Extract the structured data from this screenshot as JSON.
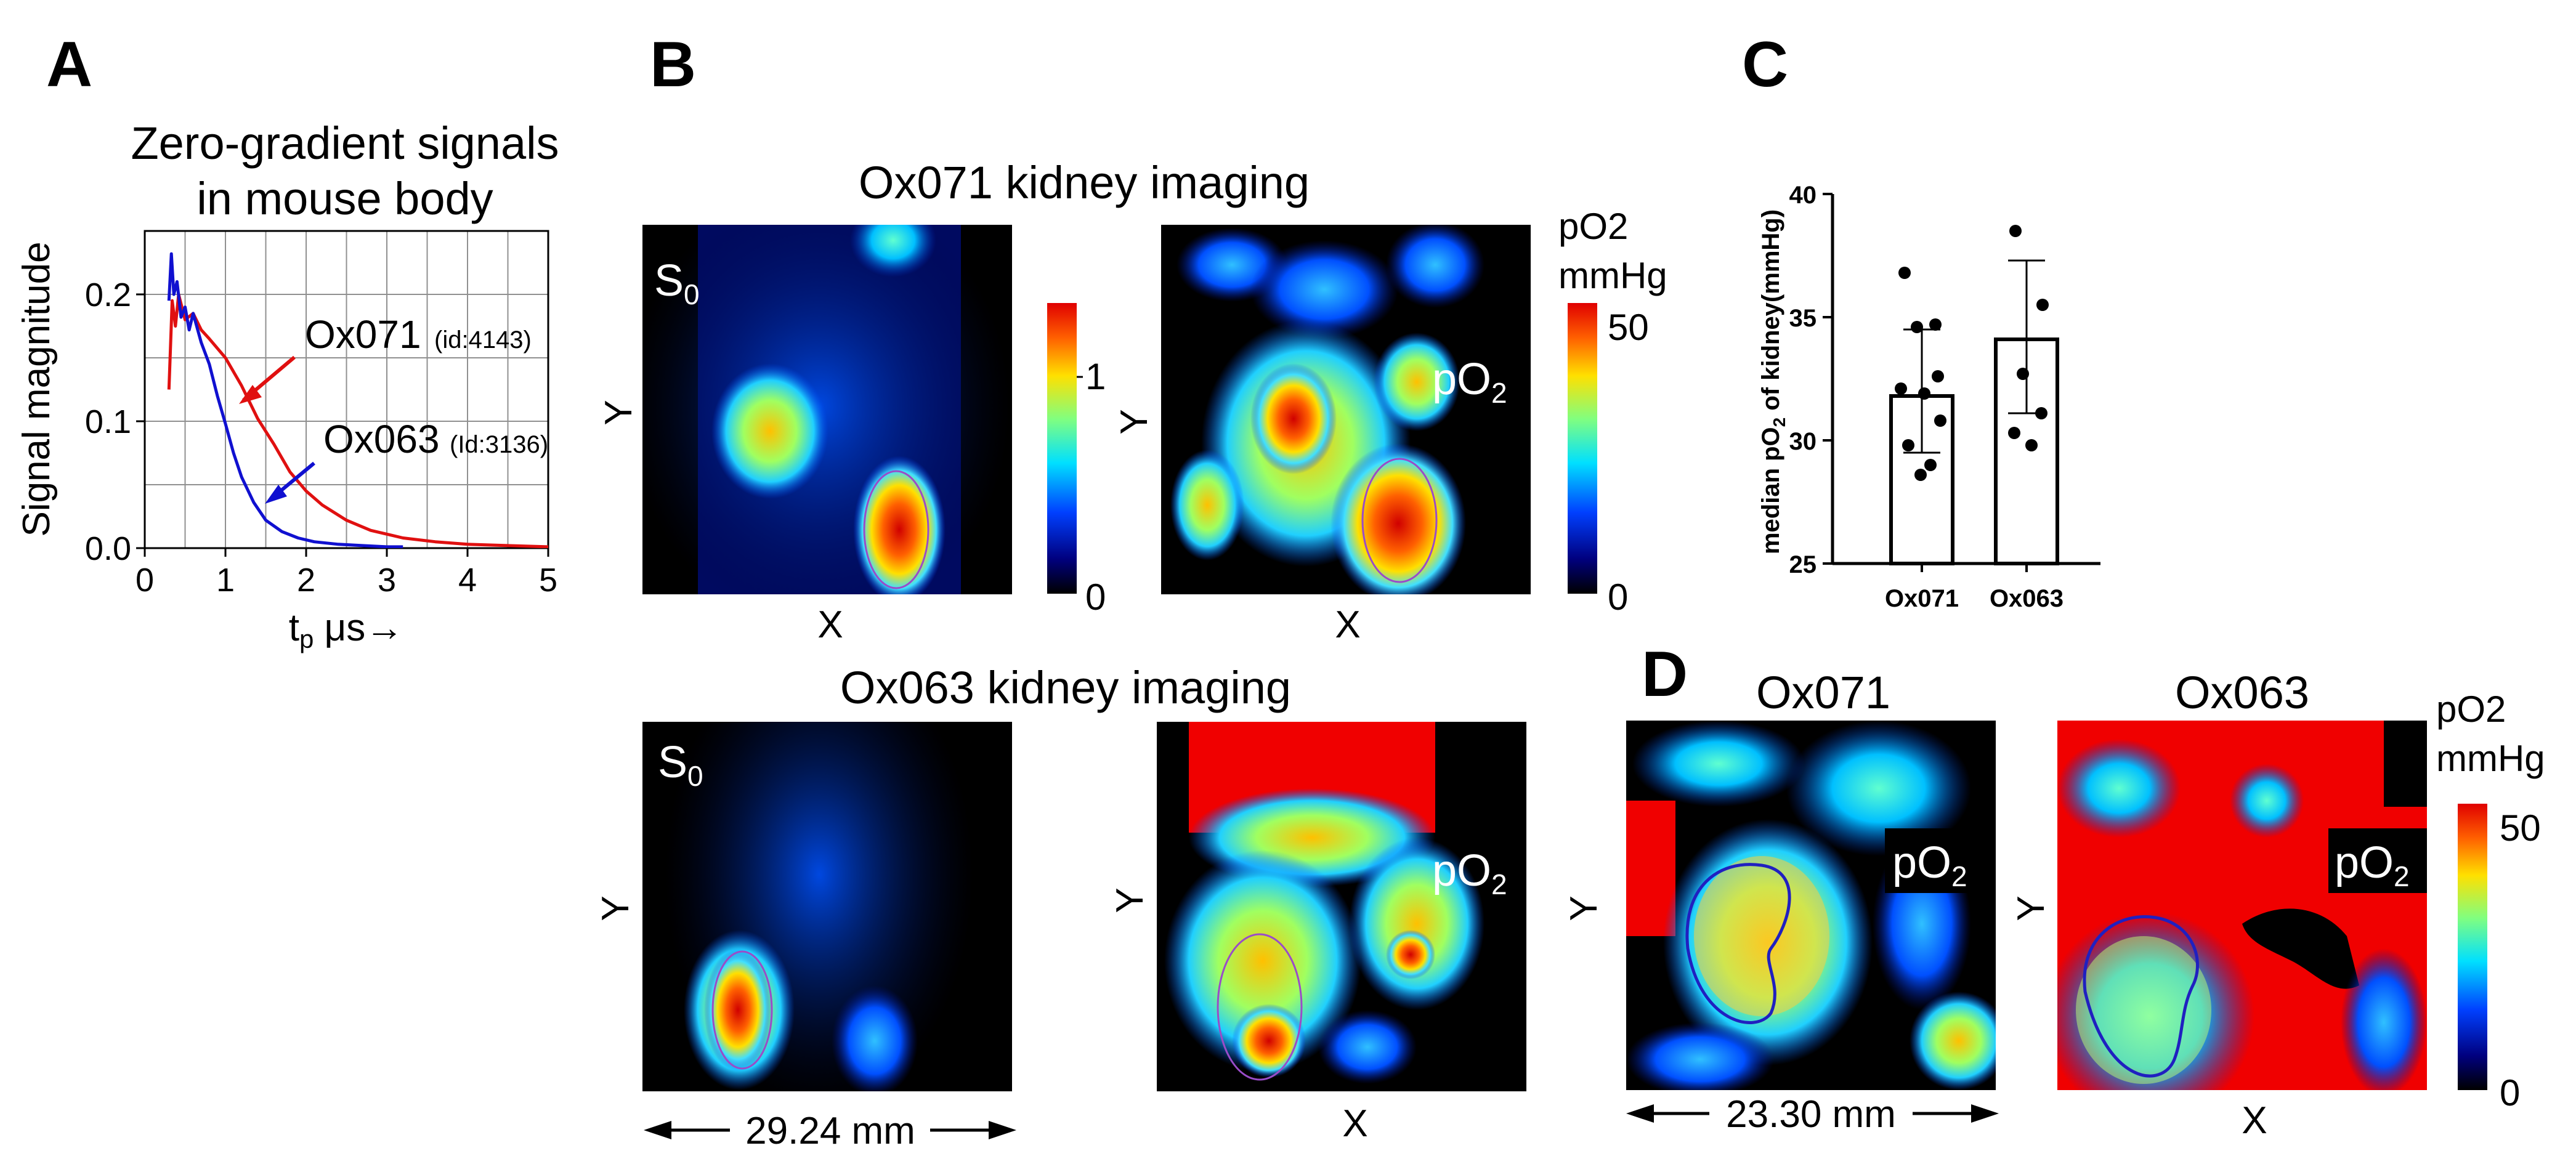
{
  "panels": {
    "a_letter": "A",
    "b_letter": "B",
    "c_letter": "C",
    "d_letter": "D"
  },
  "panel_b": {
    "ox071_title": "Ox071 kidney imaging",
    "ox063_title": "Ox063 kidney imaging",
    "s0_label": "S",
    "s0_sub": "0",
    "po2_label": "pO",
    "po2_sub": "2",
    "x_label": "X",
    "y_label": "Y",
    "cb1_ticks": [
      "1",
      "0"
    ],
    "cb2_title1": "pO2",
    "cb2_title2": "mmHg",
    "cb2_ticks": [
      "50",
      "0"
    ],
    "scale_label": "29.24 mm"
  },
  "panel_d": {
    "ox071_title": "Ox071",
    "ox063_title": "Ox063",
    "po2_label": "pO",
    "po2_sub": "2",
    "x_label": "X",
    "y_label": "Y",
    "scale_label": "23.30 mm",
    "cb_title1": "pO2",
    "cb_title2": "mmHg",
    "cb_ticks": [
      "50",
      "0"
    ]
  },
  "colors": {
    "ox071": "#e01010",
    "ox063": "#1010d0",
    "grid": "#909090",
    "roi": "#9a4cc8",
    "roi_d": "#2020c0"
  },
  "chart_data": [
    {
      "type": "line",
      "id": "A",
      "title": [
        "Zero-gradient signals",
        "in mouse body"
      ],
      "xlabel_main": "t",
      "xlabel_sub": "p",
      "xlabel_unit": " μs→",
      "ylabel": "Signal magnitude",
      "xlim": [
        0,
        5
      ],
      "ylim": [
        0,
        0.25
      ],
      "xticks": [
        0,
        1,
        2,
        3,
        4,
        5
      ],
      "yticks": [
        0.0,
        0.1,
        0.2
      ],
      "ytick_labels": [
        "0.0",
        "0.1",
        "0.2"
      ],
      "xgrid": [
        0,
        0.5,
        1,
        1.5,
        2,
        2.5,
        3,
        3.5,
        4,
        4.5,
        5
      ],
      "ygrid": [
        0,
        0.05,
        0.1,
        0.15,
        0.2,
        0.25
      ],
      "series": [
        {
          "name": "Ox071",
          "annotation": "Ox071",
          "annotation_id": "(id:4143)",
          "x": [
            0.3,
            0.34,
            0.38,
            0.42,
            0.5,
            0.6,
            0.7,
            0.8,
            1.0,
            1.2,
            1.4,
            1.6,
            1.8,
            2.0,
            2.2,
            2.5,
            2.8,
            3.2,
            3.6,
            4.0,
            4.5,
            5.0
          ],
          "y": [
            0.125,
            0.195,
            0.175,
            0.2,
            0.18,
            0.185,
            0.172,
            0.165,
            0.15,
            0.128,
            0.102,
            0.082,
            0.06,
            0.045,
            0.034,
            0.022,
            0.014,
            0.008,
            0.005,
            0.003,
            0.002,
            0.001
          ]
        },
        {
          "name": "Ox063",
          "annotation": "Ox063",
          "annotation_id": "(Id:3136)",
          "x": [
            0.3,
            0.33,
            0.36,
            0.4,
            0.45,
            0.5,
            0.55,
            0.6,
            0.7,
            0.8,
            0.9,
            1.0,
            1.1,
            1.2,
            1.35,
            1.5,
            1.7,
            1.9,
            2.1,
            2.4,
            2.7,
            3.0,
            3.2
          ],
          "y": [
            0.195,
            0.232,
            0.2,
            0.21,
            0.182,
            0.19,
            0.172,
            0.185,
            0.162,
            0.145,
            0.12,
            0.098,
            0.075,
            0.056,
            0.036,
            0.022,
            0.013,
            0.008,
            0.005,
            0.003,
            0.002,
            0.001,
            0.001
          ]
        }
      ]
    },
    {
      "type": "bar",
      "id": "C",
      "categories": [
        "Ox071",
        "Ox063"
      ],
      "values": [
        31.8,
        34.1
      ],
      "error_low": [
        29.5,
        31.1
      ],
      "error_high": [
        34.5,
        37.3
      ],
      "points": [
        [
          36.8,
          34.7,
          34.6,
          32.6,
          32.1,
          31.9,
          30.8,
          29.8,
          29.0,
          28.6
        ],
        [
          38.5,
          35.5,
          32.7,
          31.1,
          30.3,
          29.8
        ]
      ],
      "ylabel_main": "median pO",
      "ylabel_sub": "2",
      "ylabel_rest": " of kidney(mmHg)",
      "ylim": [
        25,
        40
      ],
      "yticks": [
        25,
        30,
        35,
        40
      ],
      "ytick_labels": [
        "25",
        "30",
        "35",
        "40"
      ]
    }
  ]
}
